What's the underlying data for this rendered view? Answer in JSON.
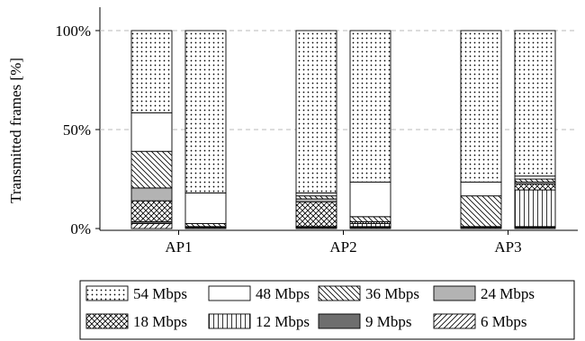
{
  "chart_data": {
    "type": "bar",
    "stacked": true,
    "categories": [
      "AP1",
      "AP2",
      "AP3"
    ],
    "bars_per_category": 2,
    "ylabel": "Transmitted frames [%]",
    "xlabel": "",
    "ylim": [
      0,
      100
    ],
    "yticks": [
      "0%",
      "50%",
      "100%"
    ],
    "grid": "horizontal dashed",
    "legend_position": "bottom",
    "series": [
      {
        "name": "6 Mbps",
        "pattern": "north-east-lines",
        "values": [
          [
            2.5,
            0.5
          ],
          [
            0.5,
            0.5
          ],
          [
            0.5,
            0.5
          ]
        ]
      },
      {
        "name": "9 Mbps",
        "pattern": "dark-gray-fill",
        "values": [
          [
            1.0,
            0.5
          ],
          [
            0.5,
            0.5
          ],
          [
            0.5,
            0.5
          ]
        ]
      },
      {
        "name": "12 Mbps",
        "pattern": "vertical-lines",
        "values": [
          [
            0.0,
            0.0
          ],
          [
            0.0,
            1.5
          ],
          [
            0.0,
            18.5
          ]
        ]
      },
      {
        "name": "18 Mbps",
        "pattern": "crosshatch",
        "values": [
          [
            10.5,
            0.0
          ],
          [
            12.5,
            1.0
          ],
          [
            0.0,
            3.0
          ]
        ]
      },
      {
        "name": "24 Mbps",
        "pattern": "light-gray-fill",
        "values": [
          [
            6.5,
            0.0
          ],
          [
            1.5,
            0.0
          ],
          [
            0.0,
            1.0
          ]
        ]
      },
      {
        "name": "36 Mbps",
        "pattern": "north-west-lines",
        "values": [
          [
            18.5,
            1.5
          ],
          [
            1.5,
            2.5
          ],
          [
            15.5,
            1.5
          ]
        ]
      },
      {
        "name": "48 Mbps",
        "pattern": "white-fill",
        "values": [
          [
            19.5,
            15.5
          ],
          [
            1.5,
            17.5
          ],
          [
            7.0,
            1.5
          ]
        ]
      },
      {
        "name": "54 Mbps",
        "pattern": "dots",
        "values": [
          [
            41.5,
            82.0
          ],
          [
            82.0,
            76.5
          ],
          [
            76.5,
            73.5
          ]
        ]
      }
    ],
    "legend_order": [
      "54 Mbps",
      "48 Mbps",
      "36 Mbps",
      "24 Mbps",
      "18 Mbps",
      "12 Mbps",
      "9 Mbps",
      "6 Mbps"
    ]
  }
}
